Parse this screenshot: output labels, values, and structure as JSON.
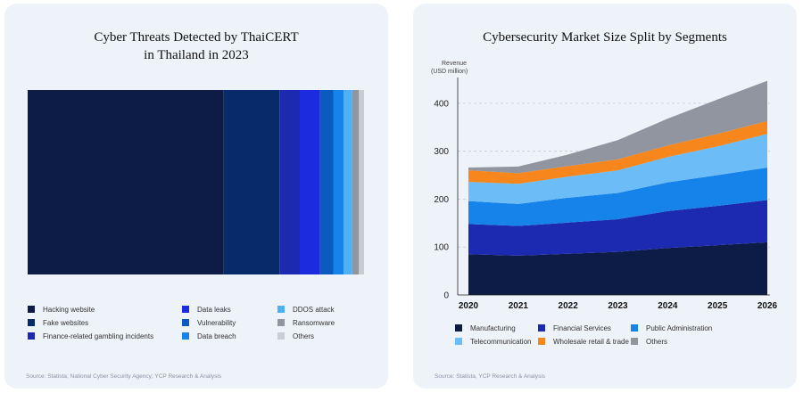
{
  "chart_data": [
    {
      "type": "bar",
      "subtype": "stacked-horizontal-100",
      "title_lines": [
        "Cyber Threats Detected by ThaiCERT",
        "in Thailand in 2023"
      ],
      "categories": [
        "Hacking website",
        "Fake websites",
        "Finance-related gambling incidents",
        "Data leaks",
        "Vulnerability",
        "Data breach",
        "DDOS attack",
        "Ransomware",
        "Others"
      ],
      "values": [
        58.0,
        16.5,
        6.0,
        6.0,
        4.0,
        3.0,
        2.5,
        2.0,
        1.5
      ],
      "colors": [
        "#0d1c46",
        "#072a6b",
        "#1c2ab1",
        "#1d2be0",
        "#0a5bc0",
        "#1683ea",
        "#4fb0f6",
        "#9095a0",
        "#c9ccd2"
      ],
      "source": "Source: Statista; National Cyber Security Agency; YCP Research & Analysis"
    },
    {
      "type": "area",
      "subtype": "stacked",
      "title": "Cybersecurity Market Size Split by Segments",
      "ylabel_lines": [
        "Revenue",
        "(USD million)"
      ],
      "x": [
        "2020",
        "2021",
        "2022",
        "2023",
        "2024",
        "2025",
        "2026"
      ],
      "ylim": [
        0,
        450
      ],
      "yticks": [
        "0",
        "100",
        "200",
        "300",
        "400"
      ],
      "series": [
        {
          "name": "Manufacturing",
          "color": "#0d1c46",
          "values": [
            85,
            82,
            86,
            90,
            98,
            104,
            110
          ]
        },
        {
          "name": "Financial Services",
          "color": "#1c2ab1",
          "values": [
            63,
            62,
            65,
            68,
            77,
            82,
            88
          ]
        },
        {
          "name": "Public Administration",
          "color": "#1683ea",
          "values": [
            48,
            46,
            52,
            55,
            60,
            64,
            68
          ]
        },
        {
          "name": "Telecommunication",
          "color": "#6cbcf7",
          "values": [
            40,
            42,
            44,
            47,
            53,
            60,
            70
          ]
        },
        {
          "name": "Wholesale retail & trade",
          "color": "#f7861c",
          "values": [
            24,
            22,
            22,
            23,
            24,
            26,
            27
          ]
        },
        {
          "name": "Others",
          "color": "#9095a0",
          "values": [
            6,
            14,
            24,
            40,
            56,
            72,
            84
          ]
        }
      ],
      "source": "Source: Statista, YCP Research & Analysis"
    }
  ]
}
